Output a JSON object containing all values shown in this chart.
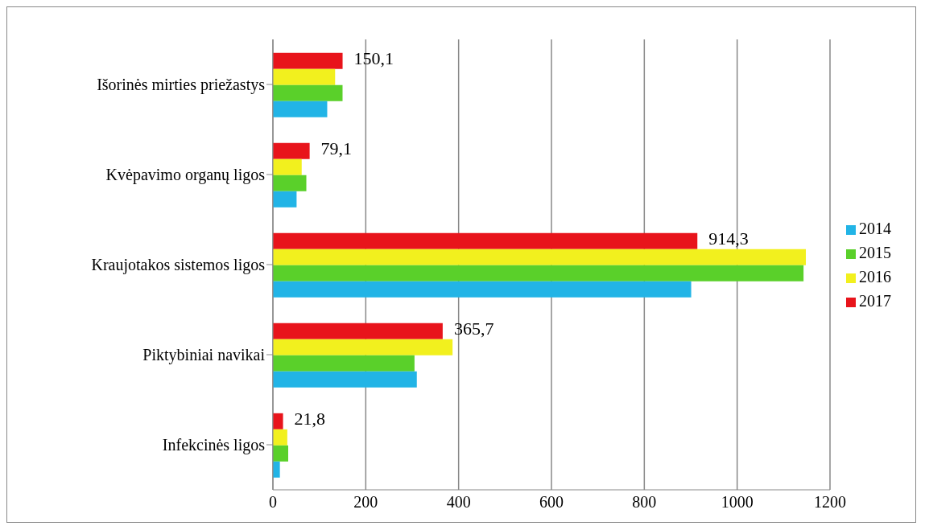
{
  "chart_data": {
    "type": "bar",
    "orientation": "horizontal",
    "categories": [
      "Išorinės mirties priežastys",
      "Kvėpavimo organų ligos",
      "Kraujotakos sistemos ligos",
      "Piktybiniai navikai",
      "Infekcinės ligos"
    ],
    "series": [
      {
        "name": "2017",
        "color": "#e8141b",
        "values": [
          150.1,
          79.1,
          914.3,
          365.7,
          21.8
        ],
        "value_labels": [
          "150,1",
          "79,1",
          "914,3",
          "365,7",
          "21,8"
        ]
      },
      {
        "name": "2016",
        "color": "#f2f01e",
        "values": [
          134,
          62,
          1148,
          387,
          31
        ]
      },
      {
        "name": "2015",
        "color": "#5ad02a",
        "values": [
          150,
          72,
          1143,
          305,
          33
        ]
      },
      {
        "name": "2014",
        "color": "#22b4e6",
        "values": [
          117,
          51,
          901,
          310,
          15
        ]
      }
    ],
    "xlim": [
      0,
      1200
    ],
    "xticks": [
      0,
      200,
      400,
      600,
      800,
      1000,
      1200
    ],
    "grid": "x",
    "legend": "right"
  }
}
